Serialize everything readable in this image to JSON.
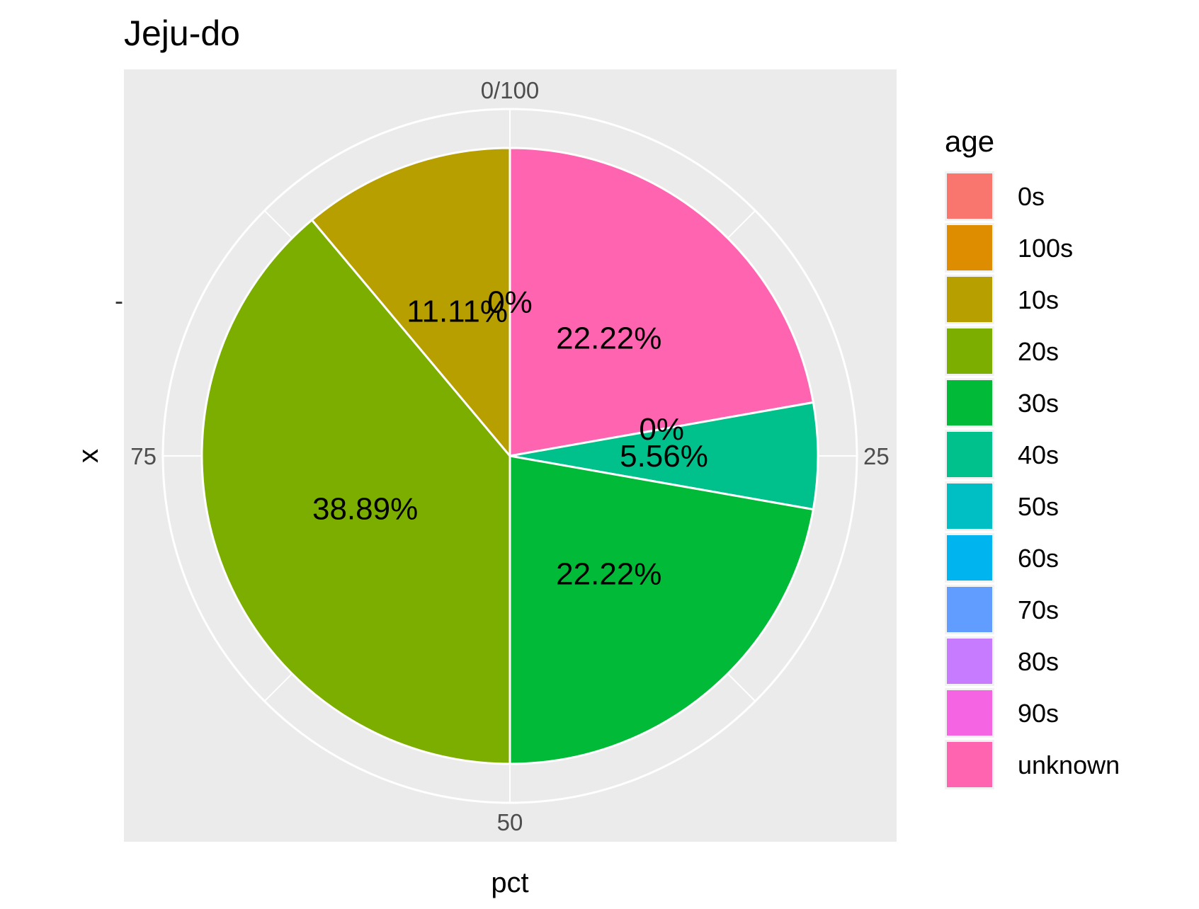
{
  "chart_data": {
    "type": "pie",
    "title": "Jeju-do",
    "xlabel": "pct",
    "ylabel": "x",
    "y_tick": "-",
    "angle_ticks": [
      "0/100",
      "25",
      "50",
      "75"
    ],
    "legend": {
      "title": "age",
      "position": "right",
      "entries": [
        {
          "name": "0s",
          "color": "#F8766D"
        },
        {
          "name": "100s",
          "color": "#DE8C00"
        },
        {
          "name": "10s",
          "color": "#B79F00"
        },
        {
          "name": "20s",
          "color": "#7CAE00"
        },
        {
          "name": "30s",
          "color": "#00BA38"
        },
        {
          "name": "40s",
          "color": "#00C08B"
        },
        {
          "name": "50s",
          "color": "#00BFC4"
        },
        {
          "name": "60s",
          "color": "#00B4F0"
        },
        {
          "name": "70s",
          "color": "#619CFF"
        },
        {
          "name": "80s",
          "color": "#C77CFF"
        },
        {
          "name": "90s",
          "color": "#F564E3"
        },
        {
          "name": "unknown",
          "color": "#FF64B0"
        }
      ]
    },
    "slices": [
      {
        "category": "unknown",
        "value": 22.22,
        "label": "22.22%",
        "color": "#FF64B0"
      },
      {
        "category": "50s",
        "value": 0,
        "label": "0%",
        "color": "#00BFC4"
      },
      {
        "category": "40s",
        "value": 5.56,
        "label": "5.56%",
        "color": "#00C08B"
      },
      {
        "category": "30s",
        "value": 22.22,
        "label": "22.22%",
        "color": "#00BA38"
      },
      {
        "category": "20s",
        "value": 38.89,
        "label": "38.89%",
        "color": "#7CAE00"
      },
      {
        "category": "10s",
        "value": 11.11,
        "label": "11.11%",
        "color": "#B79F00"
      },
      {
        "category": "100s",
        "value": 0,
        "label": "0%",
        "color": "#DE8C00"
      }
    ],
    "grid": true,
    "panel_color": "#EBEBEB"
  }
}
